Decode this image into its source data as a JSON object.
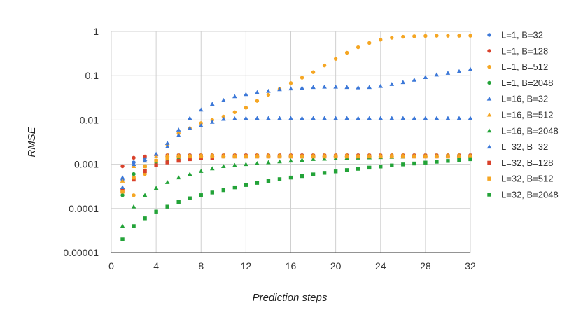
{
  "chart_data": {
    "type": "scatter",
    "title": "",
    "xlabel": "Prediction steps",
    "ylabel": "RMSE",
    "xlim": [
      0,
      32
    ],
    "ylim": [
      1e-05,
      1
    ],
    "yscale": "log",
    "grid": true,
    "legend": "right",
    "x_ticks": [
      0,
      4,
      8,
      12,
      16,
      20,
      24,
      28,
      32
    ],
    "x_tick_labels": [
      "0",
      "4",
      "8",
      "12",
      "16",
      "20",
      "24",
      "28",
      "32"
    ],
    "y_ticks": [
      1e-05,
      0.0001,
      0.001,
      0.01,
      0.1,
      1
    ],
    "y_tick_labels": [
      "0.00001",
      "0.0001",
      "0.001",
      "0.01",
      "0.1",
      "1"
    ],
    "x": [
      1,
      2,
      3,
      4,
      5,
      6,
      7,
      8,
      9,
      10,
      11,
      12,
      13,
      14,
      15,
      16,
      17,
      18,
      19,
      20,
      21,
      22,
      23,
      24,
      25,
      26,
      27,
      28,
      29,
      30,
      31,
      32
    ],
    "series": [
      {
        "name": "L=1, B=32",
        "marker": "circle",
        "color": "#3c78d8",
        "values": [
          0.00045,
          0.0011,
          0.0014,
          0.0016,
          0.0016,
          0.0016,
          0.0016,
          0.0016,
          0.0016,
          0.0016,
          0.0016,
          0.0016,
          0.0016,
          0.0016,
          0.0016,
          0.0016,
          0.0016,
          0.0016,
          0.0016,
          0.0016,
          0.0016,
          0.0016,
          0.0016,
          0.0016,
          0.0016,
          0.0016,
          0.0016,
          0.0016,
          0.0016,
          0.0016,
          0.0016,
          0.0016
        ]
      },
      {
        "name": "L=1, B=128",
        "marker": "circle",
        "color": "#d9412b",
        "values": [
          0.0009,
          0.0014,
          0.0015,
          0.0016,
          0.0016,
          0.0016,
          0.0016,
          0.0016,
          0.0016,
          0.0016,
          0.0016,
          0.0016,
          0.0016,
          0.0016,
          0.0016,
          0.0016,
          0.0016,
          0.0016,
          0.0016,
          0.0016,
          0.0016,
          0.0016,
          0.0016,
          0.0016,
          0.0016,
          0.0016,
          0.0016,
          0.0016,
          0.0016,
          0.0016,
          0.0016,
          0.0016
        ]
      },
      {
        "name": "L=1, B=512",
        "marker": "circle",
        "color": "#f5a623",
        "values": [
          0.00028,
          0.0002,
          0.0006,
          0.0012,
          0.0028,
          0.005,
          0.0065,
          0.0085,
          0.01,
          0.012,
          0.015,
          0.019,
          0.027,
          0.037,
          0.05,
          0.068,
          0.09,
          0.12,
          0.17,
          0.24,
          0.33,
          0.44,
          0.55,
          0.65,
          0.72,
          0.76,
          0.78,
          0.79,
          0.8,
          0.8,
          0.8,
          0.8
        ]
      },
      {
        "name": "L=1, B=2048",
        "marker": "circle",
        "color": "#23a338",
        "values": [
          0.0002,
          0.0006,
          0.0009,
          0.0011,
          0.0013,
          0.0014,
          0.0015,
          0.0015,
          0.0015,
          0.0015,
          0.0015,
          0.0015,
          0.0015,
          0.0015,
          0.0015,
          0.0015,
          0.0015,
          0.0015,
          0.0015,
          0.0015,
          0.0015,
          0.0015,
          0.0015,
          0.0015,
          0.0015,
          0.0015,
          0.0015,
          0.0015,
          0.0015,
          0.0015,
          0.0015,
          0.0015
        ]
      },
      {
        "name": "L=16, B=32",
        "marker": "triangle",
        "color": "#3c78d8",
        "values": [
          0.0005,
          0.001,
          0.0013,
          0.0015,
          0.003,
          0.006,
          0.011,
          0.017,
          0.023,
          0.028,
          0.034,
          0.038,
          0.042,
          0.045,
          0.049,
          0.051,
          0.053,
          0.055,
          0.056,
          0.056,
          0.055,
          0.054,
          0.055,
          0.058,
          0.064,
          0.071,
          0.08,
          0.092,
          0.105,
          0.115,
          0.125,
          0.14
        ]
      },
      {
        "name": "L=16, B=512",
        "marker": "triangle",
        "color": "#f5a623",
        "values": [
          0.00042,
          0.0009,
          0.0012,
          0.0015,
          0.0016,
          0.0016,
          0.0016,
          0.0016,
          0.0016,
          0.0016,
          0.0016,
          0.0016,
          0.0016,
          0.0016,
          0.0016,
          0.0016,
          0.0016,
          0.0016,
          0.0016,
          0.0016,
          0.0016,
          0.0016,
          0.0016,
          0.0016,
          0.0016,
          0.0016,
          0.0016,
          0.0016,
          0.0016,
          0.0016,
          0.0016,
          0.0016
        ]
      },
      {
        "name": "L=16, B=2048",
        "marker": "triangle",
        "color": "#23a338",
        "values": [
          4e-05,
          0.00011,
          0.0002,
          0.00029,
          0.00039,
          0.0005,
          0.0006,
          0.0007,
          0.0008,
          0.0009,
          0.00095,
          0.001,
          0.00105,
          0.0011,
          0.00115,
          0.0012,
          0.00125,
          0.0013,
          0.00132,
          0.00135,
          0.00138,
          0.0014,
          0.00142,
          0.00144,
          0.00146,
          0.00148,
          0.0015,
          0.0015,
          0.0015,
          0.0015,
          0.0015,
          0.0015
        ]
      },
      {
        "name": "L=32, B=32",
        "marker": "triangle",
        "color": "#3c78d8",
        "values": [
          0.0003,
          0.001,
          0.0012,
          0.0017,
          0.0025,
          0.0045,
          0.0065,
          0.0075,
          0.009,
          0.0105,
          0.0108,
          0.011,
          0.011,
          0.011,
          0.011,
          0.011,
          0.011,
          0.011,
          0.011,
          0.011,
          0.011,
          0.011,
          0.011,
          0.011,
          0.011,
          0.011,
          0.011,
          0.011,
          0.011,
          0.011,
          0.011,
          0.011
        ]
      },
      {
        "name": "L=32, B=128",
        "marker": "square",
        "color": "#d9412b",
        "values": [
          0.00025,
          0.00045,
          0.0007,
          0.00095,
          0.0011,
          0.0012,
          0.0013,
          0.0014,
          0.0014,
          0.0015,
          0.0015,
          0.0015,
          0.0015,
          0.0015,
          0.0015,
          0.0015,
          0.0015,
          0.0015,
          0.0015,
          0.0015,
          0.0015,
          0.0015,
          0.0015,
          0.0015,
          0.0015,
          0.0015,
          0.0015,
          0.0015,
          0.0015,
          0.0015,
          0.0015,
          0.0015
        ]
      },
      {
        "name": "L=32, B=512",
        "marker": "square",
        "color": "#f5a623",
        "values": [
          0.00024,
          0.0005,
          0.0009,
          0.0012,
          0.0014,
          0.0015,
          0.0015,
          0.0015,
          0.0015,
          0.0015,
          0.0015,
          0.0015,
          0.0015,
          0.0015,
          0.0015,
          0.0015,
          0.0015,
          0.0015,
          0.0015,
          0.0015,
          0.0015,
          0.0015,
          0.0015,
          0.0015,
          0.0015,
          0.0015,
          0.0015,
          0.0015,
          0.0015,
          0.0015,
          0.0015,
          0.0015
        ]
      },
      {
        "name": "L=32, B=2048",
        "marker": "square",
        "color": "#23a338",
        "values": [
          2e-05,
          4e-05,
          6e-05,
          8.5e-05,
          0.00011,
          0.00014,
          0.00017,
          0.0002,
          0.00023,
          0.00026,
          0.0003,
          0.00034,
          0.00038,
          0.00042,
          0.00046,
          0.0005,
          0.00054,
          0.00059,
          0.00064,
          0.00069,
          0.00074,
          0.00079,
          0.00084,
          0.00089,
          0.00094,
          0.00099,
          0.00104,
          0.00109,
          0.00114,
          0.00119,
          0.00125,
          0.0013
        ]
      }
    ]
  }
}
